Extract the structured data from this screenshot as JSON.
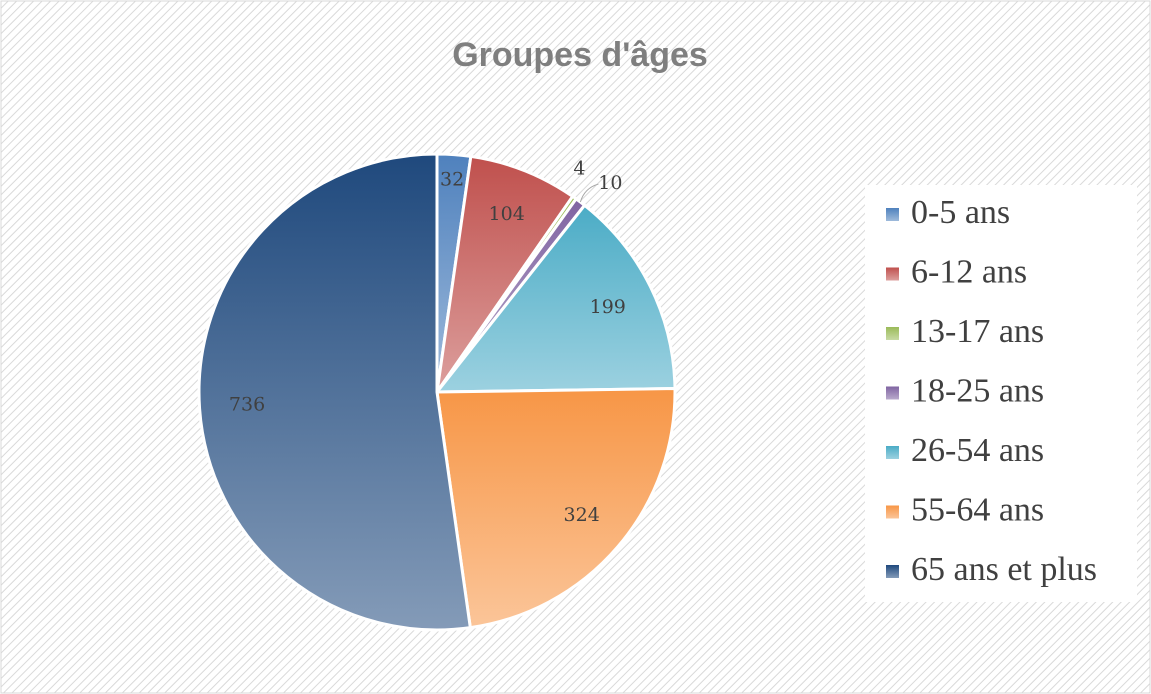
{
  "chart_data": {
    "type": "pie",
    "title": "Groupes d'âges",
    "categories": [
      "0-5 ans",
      "6-12 ans",
      "13-17 ans",
      "18-25 ans",
      "26-54 ans",
      "55-64 ans",
      "65 ans et plus"
    ],
    "values": [
      32,
      104,
      4,
      10,
      199,
      324,
      736
    ],
    "colors": [
      "#4f81bd",
      "#c0504d",
      "#9bbb59",
      "#8064a2",
      "#4bacc6",
      "#f79646",
      "#1f497d"
    ],
    "legend": "right"
  }
}
